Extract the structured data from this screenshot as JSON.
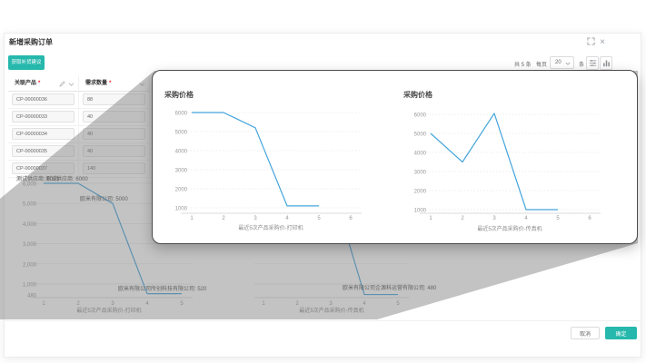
{
  "colors": {
    "accent": "#26b8ac",
    "chart_line": "#45a5dc",
    "overlay_grey": "rgba(123,123,123,0.45)",
    "required_star": "#f5222d"
  },
  "modal": {
    "title": "新增采购订单",
    "replenish_button": "获取补货建议",
    "pagination": {
      "total": "共 5 条",
      "per_page_label": "每页",
      "page_size": "20",
      "unit": "条"
    },
    "table": {
      "columns": [
        {
          "name": "关联产品",
          "star": "*"
        },
        {
          "name": "需求数量",
          "star": "*"
        }
      ],
      "rows": [
        [
          "CP-00000036",
          "88"
        ],
        [
          "CP-00000033",
          "40"
        ],
        [
          "CP-00000034",
          "40"
        ],
        [
          "CP-00000035",
          "40"
        ],
        [
          "CP-00000037",
          "140"
        ]
      ]
    },
    "footer": {
      "cancel": "取消",
      "confirm": "确定"
    }
  },
  "chart_data": [
    {
      "id": "popup-left-chart",
      "type": "line",
      "title": "采购价格",
      "xlabel": "最近5次产品采购价-打印机",
      "x_ticks": [
        "1",
        "2",
        "3",
        "4",
        "5",
        "6"
      ],
      "y_ticks": [
        "6000",
        "5000",
        "4000",
        "3000",
        "2000",
        "1000"
      ],
      "ylim": [
        1000,
        6000
      ],
      "x": [
        1,
        2,
        3,
        4,
        5
      ],
      "values": [
        6000,
        6000,
        5200,
        1100,
        1100
      ],
      "point_labels": []
    },
    {
      "id": "popup-right-chart",
      "type": "line",
      "title": "采购价格",
      "xlabel": "最近5次产品采购价-传真机",
      "x_ticks": [
        "1",
        "2",
        "3",
        "4",
        "5",
        "6"
      ],
      "y_ticks": [
        "6000",
        "5000",
        "4000",
        "3000",
        "2000",
        "1000"
      ],
      "ylim": [
        1000,
        6000
      ],
      "x": [
        1,
        2,
        3,
        4,
        5
      ],
      "values": [
        5000,
        3500,
        6050,
        1000,
        1000
      ],
      "point_labels": []
    },
    {
      "id": "background-left-chart",
      "type": "line",
      "title": "",
      "xlabel": "最近5次产品采购价-打印机",
      "x_ticks": [
        "1",
        "2",
        "3",
        "4",
        "5"
      ],
      "y_ticks": [
        "6,000",
        "5,000",
        "4,000",
        "3,000",
        "2,000",
        "1,000"
      ],
      "y_min_label": "480",
      "ylim": [
        480,
        6000
      ],
      "x": [
        1,
        2,
        3,
        4,
        5
      ],
      "values": [
        6000,
        6000,
        5000,
        520,
        520
      ],
      "point_labels": [
        "测试供应商: 6000",
        "测试供应商: 6000",
        "欧米有限公司: 5000",
        "欧米有限公司所创科技有限公司: 520"
      ]
    },
    {
      "id": "background-right-chart",
      "type": "line",
      "title": "",
      "xlabel": "最近5次产品采购价-传真机",
      "x_ticks": [
        "1",
        "2",
        "3",
        "4",
        "5"
      ],
      "y_ticks": [
        "6,000",
        "5,000",
        "4,000",
        "3,000",
        "2,000",
        "1,000"
      ],
      "ylim": [
        480,
        6000
      ],
      "x": [
        1,
        2,
        3,
        4,
        5
      ],
      "values": [
        null,
        null,
        6050,
        480,
        480
      ],
      "point_labels": [
        "欧米有限公司企源科运营有限公司: 480"
      ]
    }
  ]
}
